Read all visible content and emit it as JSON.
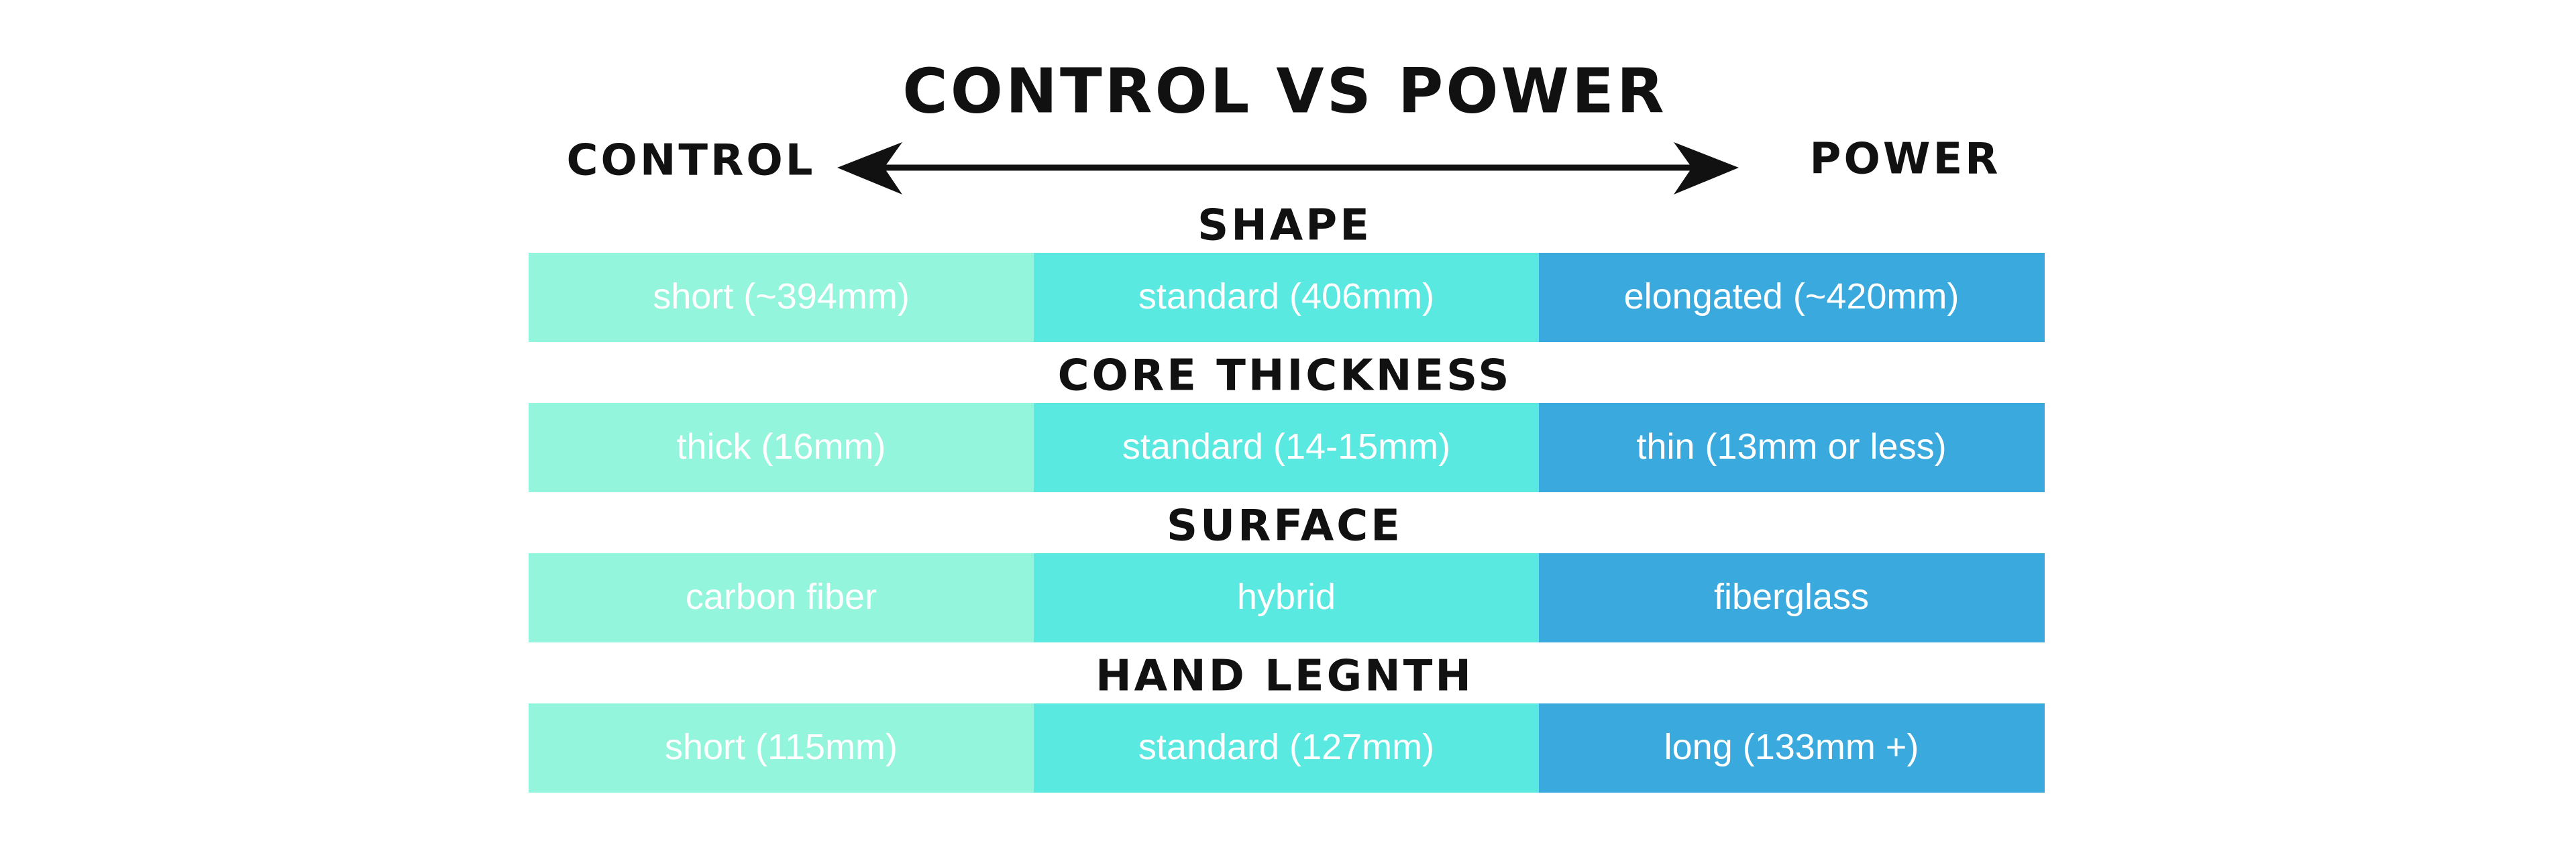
{
  "header": {
    "title": "CONTROL VS POWER",
    "left_label": "CONTROL",
    "right_label": "POWER"
  },
  "sections": [
    {
      "title": "SHAPE",
      "cells": [
        "short (~394mm)",
        "standard (406mm)",
        "elongated (~420mm)"
      ]
    },
    {
      "title": "CORE THICKNESS",
      "cells": [
        "thick (16mm)",
        "standard (14-15mm)",
        "thin (13mm or less)"
      ]
    },
    {
      "title": "SURFACE",
      "cells": [
        "carbon fiber",
        "hybrid",
        "fiberglass"
      ]
    },
    {
      "title": "HAND LEGNTH",
      "cells": [
        "short (115mm)",
        "standard (127mm)",
        "long (133mm +)"
      ]
    }
  ]
}
